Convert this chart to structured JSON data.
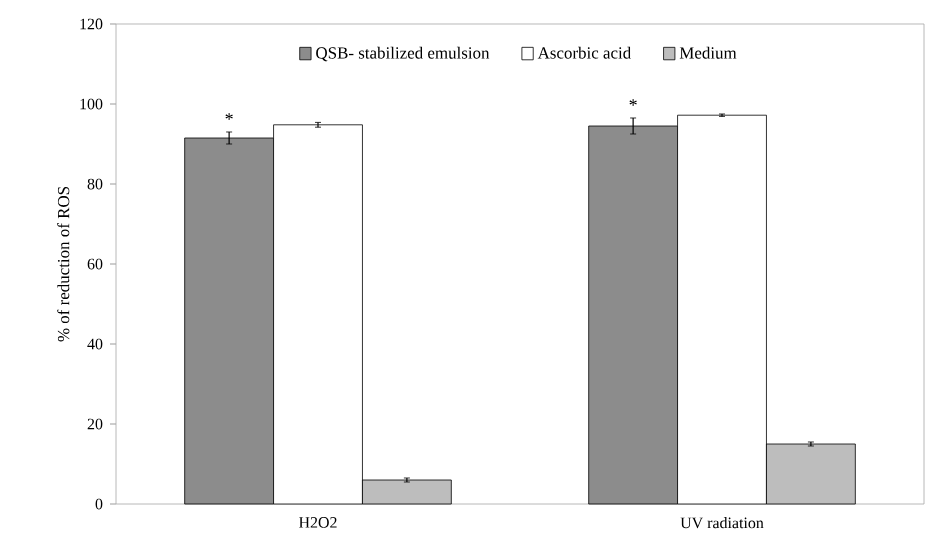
{
  "chart_data": {
    "type": "bar",
    "ylabel": "% of reduction of ROS",
    "categories": [
      "H2O2",
      "UV radiation"
    ],
    "series": [
      {
        "name": "QSB- stabilized emulsion",
        "color": "#8c8c8c",
        "values": [
          91.5,
          94.5
        ],
        "errors": [
          1.5,
          2
        ]
      },
      {
        "name": "Ascorbic acid",
        "color": "#ffffff",
        "values": [
          94.8,
          97.2
        ],
        "errors": [
          0.6,
          0.3
        ]
      },
      {
        "name": "Medium",
        "color": "#bdbdbd",
        "values": [
          6,
          15
        ],
        "errors": [
          0.5,
          0.5
        ]
      }
    ],
    "ylim": [
      0,
      120
    ],
    "yticks": [
      0,
      20,
      40,
      60,
      80,
      100,
      120
    ],
    "annotations": [
      "*",
      "*"
    ],
    "legend": "top",
    "grid": false
  }
}
